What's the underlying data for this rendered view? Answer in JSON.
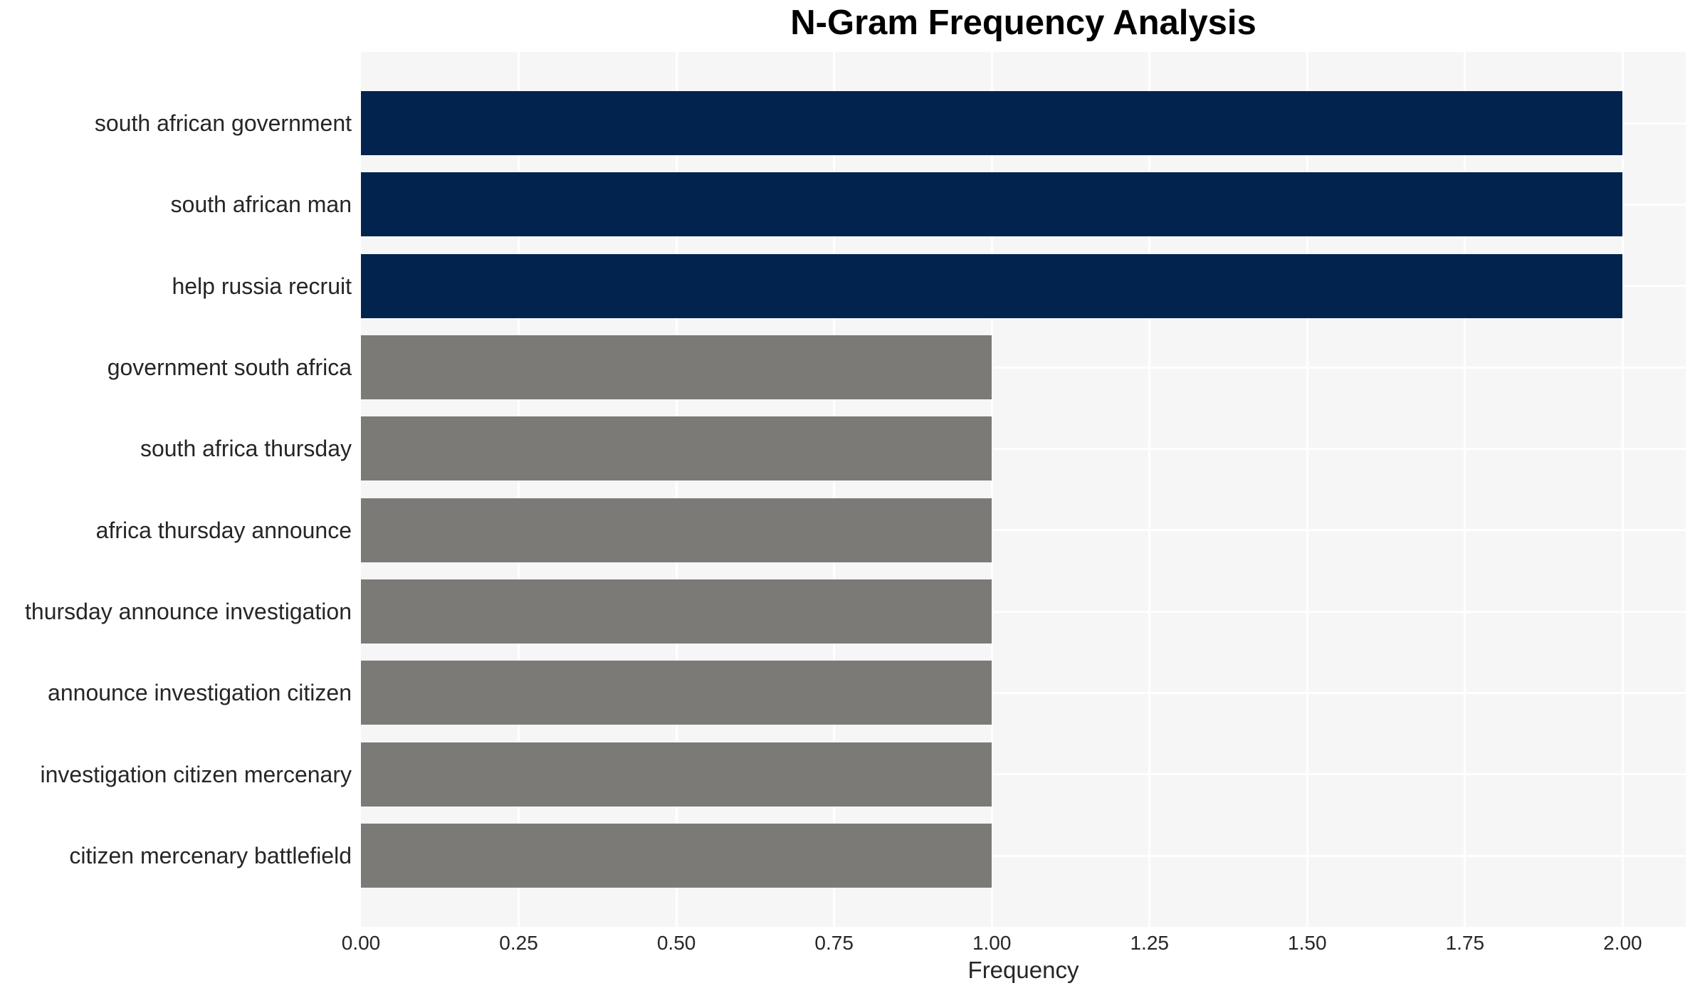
{
  "chart_data": {
    "type": "bar",
    "orientation": "horizontal",
    "title": "N-Gram Frequency Analysis",
    "xlabel": "Frequency",
    "ylabel": "",
    "categories": [
      "south african government",
      "south african man",
      "help russia recruit",
      "government south africa",
      "south africa thursday",
      "africa thursday announce",
      "thursday announce investigation",
      "announce investigation citizen",
      "investigation citizen mercenary",
      "citizen mercenary battlefield"
    ],
    "values": [
      2,
      2,
      2,
      1,
      1,
      1,
      1,
      1,
      1,
      1
    ],
    "bar_colors": [
      "#02234e",
      "#02234e",
      "#02234e",
      "#7b7a77",
      "#7b7a77",
      "#7b7a77",
      "#7b7a77",
      "#7b7a77",
      "#7b7a77",
      "#7b7a77"
    ],
    "xlim": [
      0,
      2.1
    ],
    "xticks": [
      0,
      0.25,
      0.5,
      0.75,
      1.0,
      1.25,
      1.5,
      1.75,
      2.0
    ],
    "xtick_labels": [
      "0.00",
      "0.25",
      "0.50",
      "0.75",
      "1.00",
      "1.25",
      "1.50",
      "1.75",
      "2.00"
    ],
    "grid": true,
    "grid_lines": "white vertical at each x tick and horizontal at each category center, drawn behind bars",
    "legend": false,
    "colors": {
      "figure_background": "#ffffff",
      "plot_background": "#f6f6f6",
      "grid_line": "#ffffff",
      "bar_high": "#02234e",
      "bar_low": "#7b7a77",
      "tick_text": "#262626",
      "title_text": "#000000"
    }
  }
}
